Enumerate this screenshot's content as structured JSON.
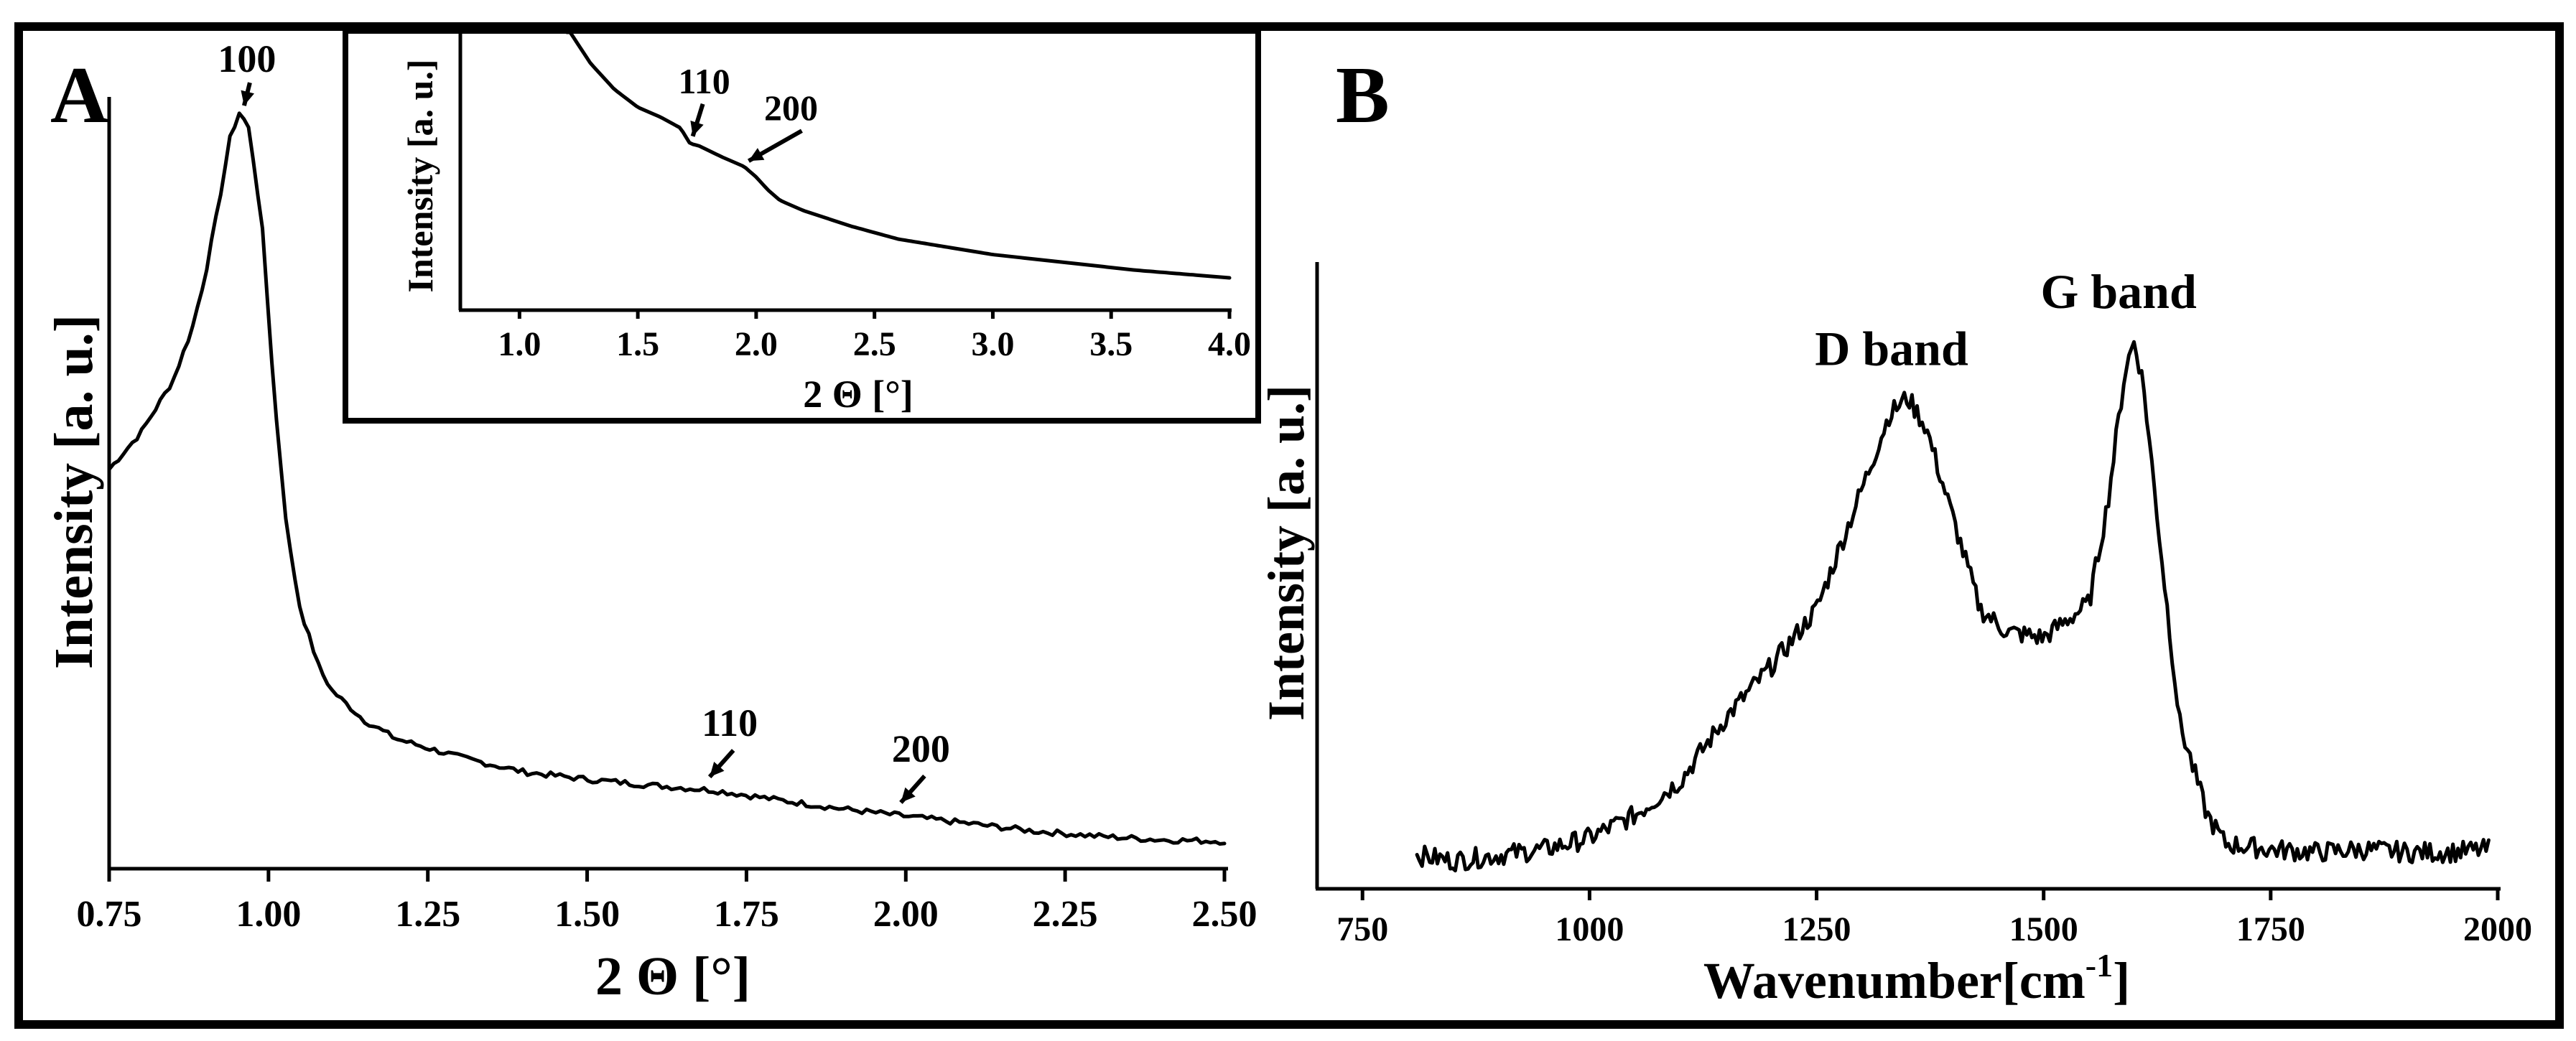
{
  "chart_data": [
    {
      "panel": "A",
      "type": "line",
      "xlabel": "2 Θ [°]",
      "ylabel": "Intensity [a. u.]",
      "xlim": [
        0.75,
        2.5
      ],
      "ylim": [
        0,
        1
      ],
      "xticks": [
        "0.75",
        "1.00",
        "1.25",
        "1.50",
        "1.75",
        "2.00",
        "2.25",
        "2.50"
      ],
      "x": [
        0.75,
        0.8,
        0.85,
        0.88,
        0.9,
        0.92,
        0.94,
        0.955,
        0.97,
        0.99,
        1.01,
        1.03,
        1.05,
        1.08,
        1.1,
        1.15,
        1.2,
        1.3,
        1.4,
        1.5,
        1.6,
        1.7,
        1.8,
        1.9,
        2.0,
        2.1,
        2.2,
        2.3,
        2.4,
        2.5
      ],
      "y": [
        0.51,
        0.56,
        0.63,
        0.7,
        0.77,
        0.86,
        0.96,
        0.995,
        0.97,
        0.84,
        0.6,
        0.42,
        0.32,
        0.24,
        0.21,
        0.17,
        0.145,
        0.12,
        0.1,
        0.09,
        0.082,
        0.075,
        0.062,
        0.05,
        0.04,
        0.03,
        0.02,
        0.013,
        0.008,
        0.006
      ],
      "annotations": [
        {
          "label": "100",
          "x": 0.955
        },
        {
          "label": "110",
          "x": 1.69
        },
        {
          "label": "200",
          "x": 1.99
        }
      ]
    },
    {
      "panel": "A-inset",
      "type": "line",
      "xlabel": "2 Θ [°]",
      "ylabel": "Intensity [a. u.]",
      "xlim": [
        0.75,
        4.0
      ],
      "ylim": [
        0,
        1
      ],
      "xticks": [
        "1.0",
        "1.5",
        "2.0",
        "2.5",
        "3.0",
        "3.5",
        "4.0"
      ],
      "x": [
        1.2,
        1.3,
        1.4,
        1.5,
        1.6,
        1.68,
        1.72,
        1.76,
        1.85,
        1.95,
        2.0,
        2.05,
        2.1,
        2.2,
        2.4,
        2.6,
        2.8,
        3.0,
        3.2,
        3.4,
        3.6,
        3.8,
        4.0
      ],
      "y": [
        1.02,
        0.88,
        0.78,
        0.71,
        0.67,
        0.63,
        0.57,
        0.56,
        0.52,
        0.48,
        0.44,
        0.39,
        0.35,
        0.31,
        0.25,
        0.2,
        0.17,
        0.14,
        0.12,
        0.1,
        0.08,
        0.065,
        0.05
      ],
      "annotations": [
        {
          "label": "110",
          "x": 1.72
        },
        {
          "label": "200",
          "x": 1.95
        }
      ]
    },
    {
      "panel": "B",
      "type": "line",
      "xlabel": "Wavenumber[cm",
      "xlabel_superscript": "-1",
      "xlabel_suffix": "]",
      "ylabel": "Intensity [a. u.]",
      "xlim": [
        700,
        2000
      ],
      "ylim": [
        0,
        1
      ],
      "xticks": [
        "750",
        "1000",
        "1250",
        "1500",
        "1750",
        "2000"
      ],
      "x": [
        810,
        850,
        900,
        950,
        1000,
        1050,
        1100,
        1150,
        1200,
        1250,
        1300,
        1330,
        1350,
        1370,
        1400,
        1430,
        1460,
        1500,
        1550,
        1570,
        1590,
        1600,
        1610,
        1630,
        1650,
        1680,
        1700,
        1750,
        1800,
        1850,
        1900,
        1950,
        1990
      ],
      "y": [
        0.03,
        0.02,
        0.03,
        0.04,
        0.06,
        0.1,
        0.16,
        0.27,
        0.36,
        0.46,
        0.67,
        0.8,
        0.83,
        0.78,
        0.62,
        0.46,
        0.42,
        0.41,
        0.47,
        0.64,
        0.88,
        0.93,
        0.85,
        0.55,
        0.26,
        0.1,
        0.05,
        0.04,
        0.035,
        0.04,
        0.035,
        0.035,
        0.04
      ],
      "annotations": [
        {
          "label": "D band",
          "x": 1350
        },
        {
          "label": "G band",
          "x": 1600
        }
      ]
    }
  ],
  "panels": {
    "a_label": "A",
    "b_label": "B"
  }
}
